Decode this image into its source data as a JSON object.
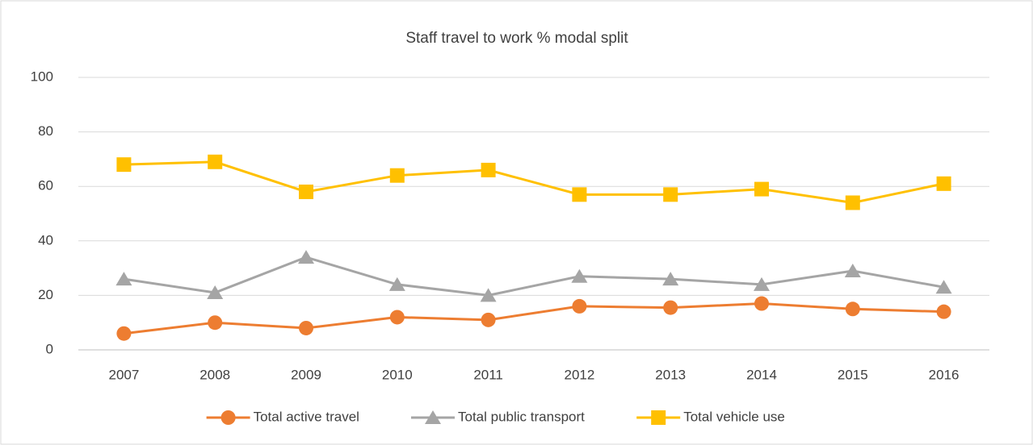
{
  "chart_data": {
    "type": "line",
    "title": "Staff travel to work % modal split",
    "categories": [
      "2007",
      "2008",
      "2009",
      "2010",
      "2011",
      "2012",
      "2013",
      "2014",
      "2015",
      "2016"
    ],
    "series": [
      {
        "name": "Total active travel",
        "color": "#ed7d31",
        "marker": "circle",
        "values": [
          6,
          10,
          8,
          12,
          11,
          16,
          15.5,
          17,
          15,
          14
        ]
      },
      {
        "name": "Total public transport",
        "color": "#a5a5a5",
        "marker": "triangle",
        "values": [
          26,
          21,
          34,
          24,
          20,
          27,
          26,
          24,
          29,
          23
        ]
      },
      {
        "name": "Total vehicle use",
        "color": "#ffc000",
        "marker": "square",
        "values": [
          68,
          69,
          58,
          64,
          66,
          57,
          57,
          59,
          54,
          61
        ]
      }
    ],
    "ylim": [
      0,
      100
    ],
    "yticks": [
      0,
      20,
      40,
      60,
      80,
      100
    ],
    "grid": true,
    "legend": "bottom"
  }
}
